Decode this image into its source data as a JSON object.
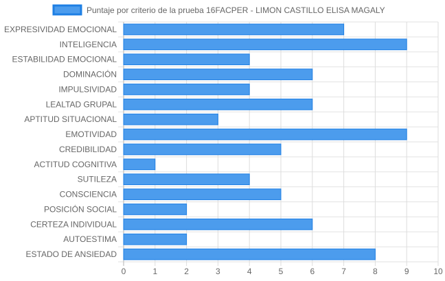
{
  "chart_data": {
    "type": "bar",
    "orientation": "horizontal",
    "categories": [
      "EXPRESIVIDAD EMOCIONAL",
      "INTELIGENCIA",
      "ESTABILIDAD EMOCIONAL",
      "DOMINACIÓN",
      "IMPULSIVIDAD",
      "LEALTAD GRUPAL",
      "APTITUD SITUACIONAL",
      "EMOTIVIDAD",
      "CREDIBILIDAD",
      "ACTITUD COGNITIVA",
      "SUTILEZA",
      "CONSCIENCIA",
      "POSICIÓN SOCIAL",
      "CERTEZA INDIVIDUAL",
      "AUTOESTIMA",
      "ESTADO DE ANSIEDAD"
    ],
    "series": [
      {
        "name": "Puntaje por criterio de la prueba 16FACPER - LIMON CASTILLO ELISA MAGALY",
        "values": [
          7,
          9,
          4,
          6,
          4,
          6,
          3,
          9,
          5,
          1,
          4,
          5,
          2,
          6,
          2,
          8
        ],
        "color": "#4c9ced",
        "border_color": "#1e7fe4"
      }
    ],
    "xlim": [
      0,
      10
    ],
    "x_ticks": [
      "0",
      "1",
      "2",
      "3",
      "4",
      "5",
      "6",
      "7",
      "8",
      "9",
      "10"
    ],
    "grid": true,
    "legend_position": "top",
    "title": "",
    "xlabel": "",
    "ylabel": ""
  }
}
